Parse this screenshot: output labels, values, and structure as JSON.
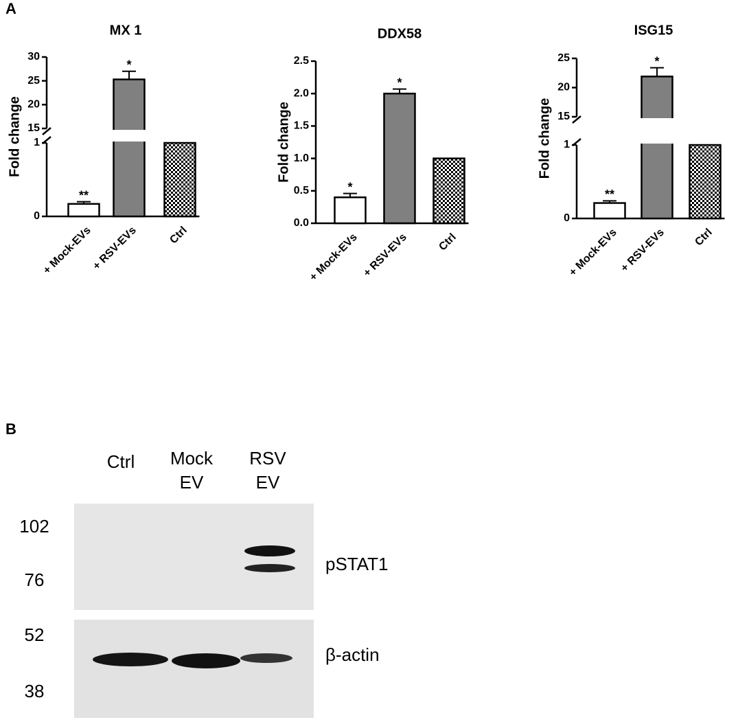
{
  "panels": {
    "a": "A",
    "b": "B"
  },
  "chart_data": [
    {
      "type": "bar",
      "title": "MX 1",
      "ylabel": "Fold change",
      "categories": [
        "+ Mock-EVs",
        "+ RSV-EVs",
        "Ctrl"
      ],
      "values": [
        0.17,
        25.3,
        1
      ],
      "errors": [
        0.03,
        1.7,
        null
      ],
      "significance": [
        "**",
        "*",
        null
      ],
      "colors": [
        "#ffffff",
        "#808080",
        "#ffffff"
      ],
      "hatch": [
        null,
        null,
        "checkerboard"
      ],
      "ylim": [
        0,
        30
      ],
      "ybreak": [
        1,
        15
      ],
      "yticks": [
        0,
        1,
        15,
        20,
        25,
        30
      ]
    },
    {
      "type": "bar",
      "title": "DDX58",
      "ylabel": "Fold change",
      "categories": [
        "+ Mock-EVs",
        "+ RSV-EVs",
        "Ctrl"
      ],
      "values": [
        0.4,
        2.0,
        1.0
      ],
      "errors": [
        0.06,
        0.07,
        null
      ],
      "significance": [
        "*",
        "*",
        null
      ],
      "colors": [
        "#ffffff",
        "#808080",
        "#ffffff"
      ],
      "hatch": [
        null,
        null,
        "checkerboard"
      ],
      "ylim": [
        0,
        2.5
      ],
      "yticks": [
        {
          "value": 0,
          "label": "0.0"
        },
        0.5,
        {
          "value": 1,
          "label": "1.0"
        },
        1.5,
        {
          "value": 2,
          "label": "2.0"
        },
        2.5
      ]
    },
    {
      "type": "bar",
      "title": "ISG15",
      "ylabel": "Fold change",
      "categories": [
        "+ Mock-EVs",
        "+ RSV-EVs",
        "Ctrl"
      ],
      "values": [
        0.21,
        21.9,
        1
      ],
      "errors": [
        0.03,
        1.5,
        null
      ],
      "significance": [
        "**",
        "*",
        null
      ],
      "colors": [
        "#ffffff",
        "#808080",
        "#ffffff"
      ],
      "hatch": [
        null,
        null,
        "checkerboard"
      ],
      "ylim": [
        0,
        25
      ],
      "ybreak": [
        1,
        15
      ],
      "yticks": [
        0,
        1,
        15,
        20,
        25
      ]
    }
  ],
  "blot": {
    "lanes": [
      [
        "Ctrl"
      ],
      [
        "Mock",
        "EV"
      ],
      [
        "RSV",
        "EV"
      ]
    ],
    "markers": [
      "102",
      "76",
      "52",
      "38"
    ],
    "proteins": [
      "pSTAT1",
      "β-actin"
    ]
  }
}
